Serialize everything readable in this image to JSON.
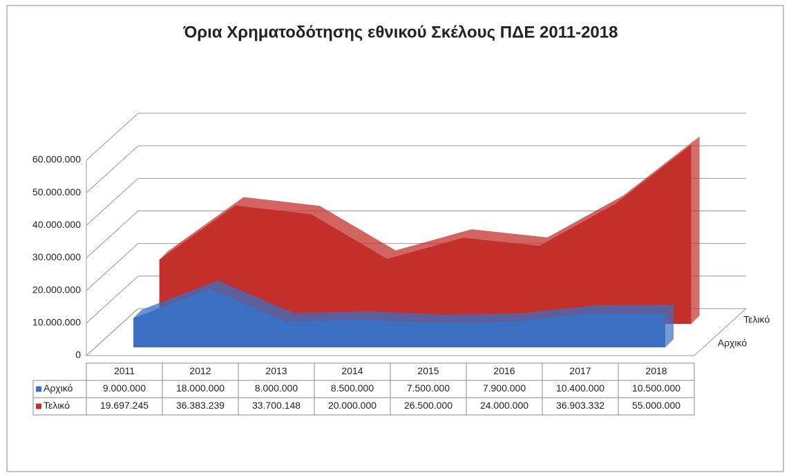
{
  "chart_data": {
    "type": "area3d",
    "title": "Όρια Χρηματοδότησης εθνικού Σκέλους ΠΔΕ 2011-2018",
    "categories": [
      "2011",
      "2012",
      "2013",
      "2014",
      "2015",
      "2016",
      "2017",
      "2018"
    ],
    "series": [
      {
        "name": "Αρχικό",
        "color": "#3b6fc2",
        "values": [
          9000000,
          18000000,
          8000000,
          8500000,
          7500000,
          7900000,
          10400000,
          10500000
        ],
        "value_labels": [
          "9.000.000",
          "18.000.000",
          "8.000.000",
          "8.500.000",
          "7.500.000",
          "7.900.000",
          "10.400.000",
          "10.500.000"
        ]
      },
      {
        "name": "Τελικό",
        "color": "#c3302c",
        "values": [
          19697245,
          36383239,
          33700148,
          20000000,
          26500000,
          24000000,
          36903332,
          55000000
        ],
        "value_labels": [
          "19.697.245",
          "36.383.239",
          "33.700.148",
          "20.000.000",
          "26.500.000",
          "24.000.000",
          "36.903.332",
          "55.000.000"
        ]
      }
    ],
    "ylim": [
      0,
      60000000
    ],
    "yticks": [
      0,
      {
        "value": 10000000,
        "label": "10.000.000"
      },
      {
        "value": 20000000,
        "label": "20.000.000"
      },
      {
        "value": 30000000,
        "label": "30.000.000"
      },
      {
        "value": 40000000,
        "label": "40.000.000"
      },
      {
        "value": 50000000,
        "label": "50.000.000"
      },
      {
        "value": 60000000,
        "label": "60.000.000"
      }
    ],
    "grid": true
  }
}
